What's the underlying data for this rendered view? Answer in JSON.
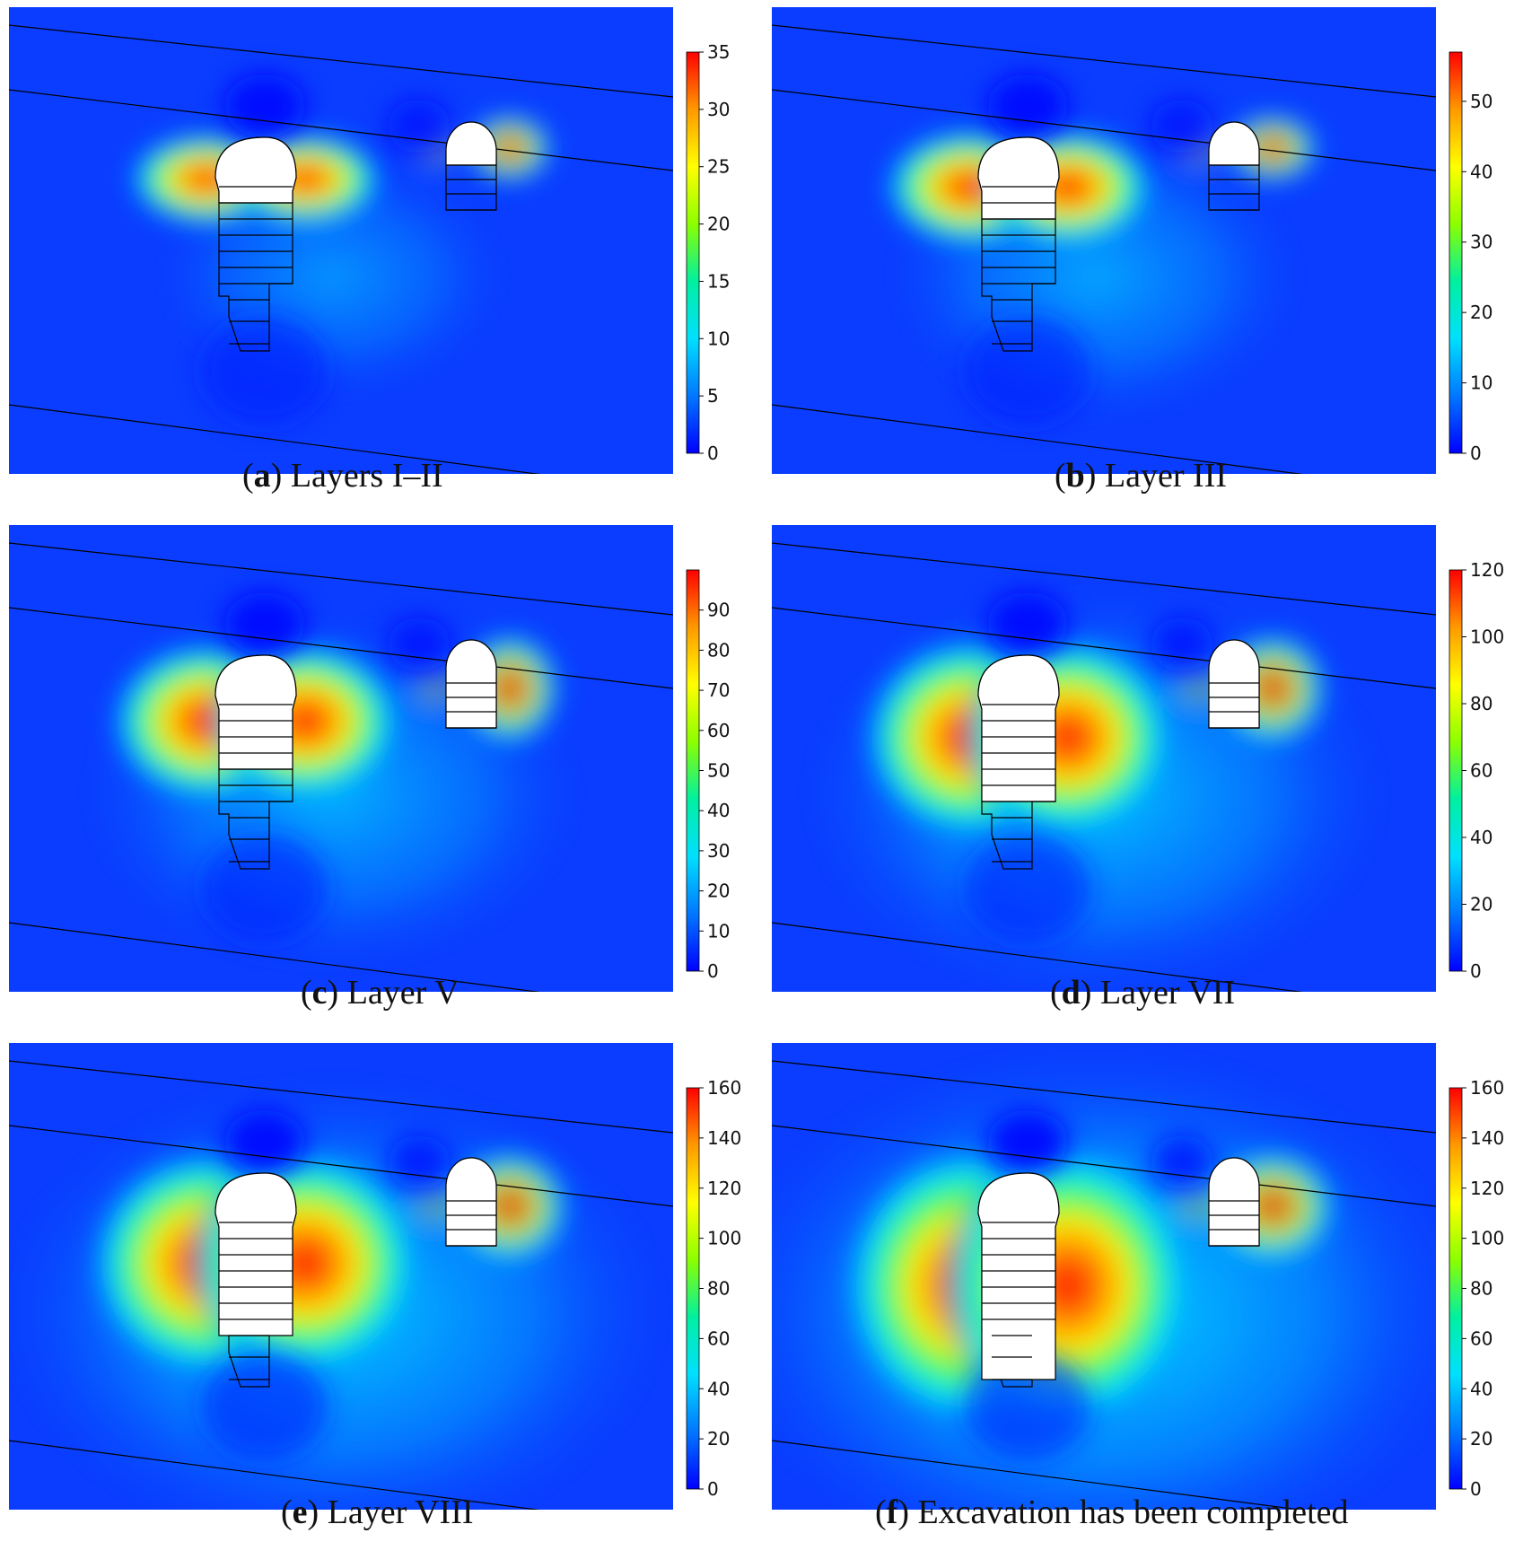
{
  "colors": {
    "colormap": [
      "#0000ff",
      "#0077ff",
      "#00e0ff",
      "#00f0a0",
      "#8cff00",
      "#ffff00",
      "#ff9900",
      "#ff0000"
    ],
    "outline": "#000000",
    "opening_fill": "#ffffff"
  },
  "chart_data": [
    {
      "type": "heatmap",
      "id": "a",
      "caption_letter": "a",
      "caption_text": "Layers I–II",
      "colorbar": {
        "min": 0,
        "max": 35,
        "ticks": [
          0,
          5,
          10,
          15,
          20,
          25,
          30,
          35
        ]
      },
      "excavated_layers": {
        "main": 2,
        "side": 1
      },
      "intensity": 0.35,
      "spread": 0.55
    },
    {
      "type": "heatmap",
      "id": "b",
      "caption_letter": "b",
      "caption_text": "Layer III",
      "colorbar": {
        "min": 0,
        "max": 57,
        "ticks": [
          0,
          10,
          20,
          30,
          40,
          50
        ]
      },
      "excavated_layers": {
        "main": 3,
        "side": 1
      },
      "intensity": 0.5,
      "spread": 0.7
    },
    {
      "type": "heatmap",
      "id": "c",
      "caption_letter": "c",
      "caption_text": "Layer V",
      "colorbar": {
        "min": 0,
        "max": 100,
        "ticks": [
          0,
          10,
          20,
          30,
          40,
          50,
          60,
          70,
          80,
          90
        ]
      },
      "excavated_layers": {
        "main": 5,
        "side": 5
      },
      "intensity": 0.6,
      "spread": 0.9
    },
    {
      "type": "heatmap",
      "id": "d",
      "caption_letter": "d",
      "caption_text": "Layer VII",
      "colorbar": {
        "min": 0,
        "max": 120,
        "ticks": [
          0,
          20,
          40,
          60,
          80,
          100,
          120
        ]
      },
      "excavated_layers": {
        "main": 7,
        "side": 5
      },
      "intensity": 0.75,
      "spread": 1.1
    },
    {
      "type": "heatmap",
      "id": "e",
      "caption_letter": "e",
      "caption_text": "Layer VIII",
      "colorbar": {
        "min": 0,
        "max": 160,
        "ticks": [
          0,
          20,
          40,
          60,
          80,
          100,
          120,
          140,
          160
        ]
      },
      "excavated_layers": {
        "main": 8,
        "side": 5
      },
      "intensity": 0.85,
      "spread": 1.3
    },
    {
      "type": "heatmap",
      "id": "f",
      "caption_letter": "f",
      "caption_text": "Excavation has been completed",
      "colorbar": {
        "min": 0,
        "max": 160,
        "ticks": [
          0,
          20,
          40,
          60,
          80,
          100,
          120,
          140,
          160
        ]
      },
      "excavated_layers": {
        "main": 10,
        "side": 5
      },
      "intensity": 1.0,
      "spread": 1.5
    }
  ]
}
